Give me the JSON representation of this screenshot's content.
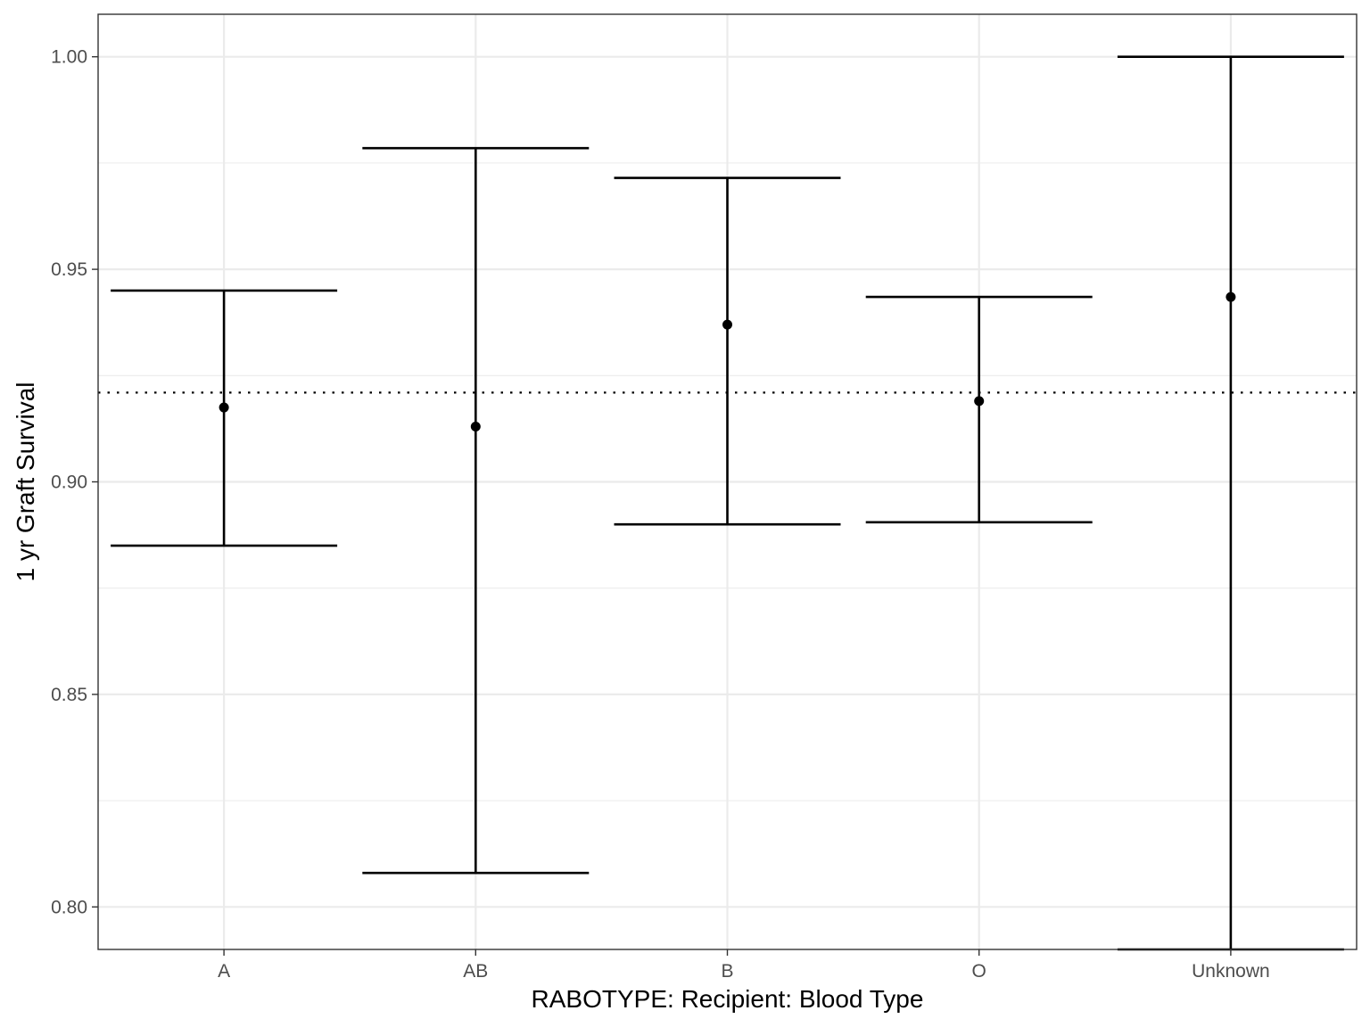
{
  "chart_data": {
    "type": "errorbar",
    "title": "",
    "xlabel": "RABOTYPE: Recipient: Blood Type",
    "ylabel": "1 yr Graft Survival",
    "categories": [
      "A",
      "AB",
      "B",
      "O",
      "Unknown"
    ],
    "estimate": [
      0.9175,
      0.913,
      0.937,
      0.919,
      0.9435
    ],
    "lower": [
      0.885,
      0.808,
      0.89,
      0.8905,
      0.79
    ],
    "upper": [
      0.945,
      0.9785,
      0.9715,
      0.9435,
      1.0
    ],
    "reference_line": 0.921,
    "ylim": [
      0.79,
      1.01
    ],
    "y_ticks": [
      0.8,
      0.85,
      0.9,
      0.95,
      1.0
    ],
    "y_tick_labels": [
      "0.80",
      "0.85",
      "0.90",
      "0.95",
      "1.00"
    ],
    "y_minor_ticks": [
      0.825,
      0.875,
      0.925,
      0.975
    ],
    "grid": true,
    "legend": "none",
    "colors": {
      "marks": "#000000",
      "grid": "#ebebeb",
      "border": "#333333",
      "tick_text": "#4d4d4d",
      "background": "#ffffff"
    }
  }
}
